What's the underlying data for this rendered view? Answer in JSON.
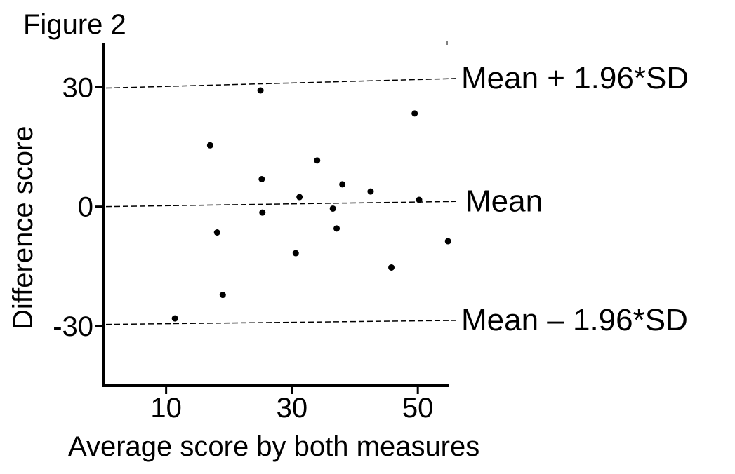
{
  "chart_data": {
    "type": "scatter",
    "title": "Figure 2",
    "xlabel": "Average score by both measures",
    "ylabel": "Difference score",
    "xlim": [
      0,
      55
    ],
    "ylim": [
      -45,
      41
    ],
    "x_ticks": [
      10,
      30,
      50
    ],
    "y_ticks": [
      30,
      0,
      -30
    ],
    "x_tick_labels": [
      "10",
      "30",
      "50"
    ],
    "y_tick_labels": [
      "30",
      "0",
      "-30"
    ],
    "grid": false,
    "reference_lines": [
      {
        "label": "Mean + 1.96*SD",
        "y_start": 29.8,
        "y_end": 32.2
      },
      {
        "label": "Mean",
        "y_start": 0.0,
        "y_end": 1.3
      },
      {
        "label": "Mean – 1.96*SD",
        "y_start": -29.6,
        "y_end": -28.6
      }
    ],
    "points": [
      {
        "x": 25,
        "y": 29.2
      },
      {
        "x": 49.5,
        "y": 23.4
      },
      {
        "x": 17,
        "y": 15.4
      },
      {
        "x": 34,
        "y": 11.6
      },
      {
        "x": 25.2,
        "y": 6.9
      },
      {
        "x": 38,
        "y": 5.6
      },
      {
        "x": 42.5,
        "y": 3.8
      },
      {
        "x": 31.2,
        "y": 2.4
      },
      {
        "x": 50.2,
        "y": 1.7
      },
      {
        "x": 36.5,
        "y": -0.5
      },
      {
        "x": 25.3,
        "y": -1.5
      },
      {
        "x": 18.1,
        "y": -6.5
      },
      {
        "x": 37.1,
        "y": -5.5
      },
      {
        "x": 54.8,
        "y": -8.7
      },
      {
        "x": 30.6,
        "y": -11.7
      },
      {
        "x": 45.8,
        "y": -15.3
      },
      {
        "x": 19,
        "y": -22.2
      },
      {
        "x": 11.4,
        "y": -28.1
      }
    ]
  }
}
